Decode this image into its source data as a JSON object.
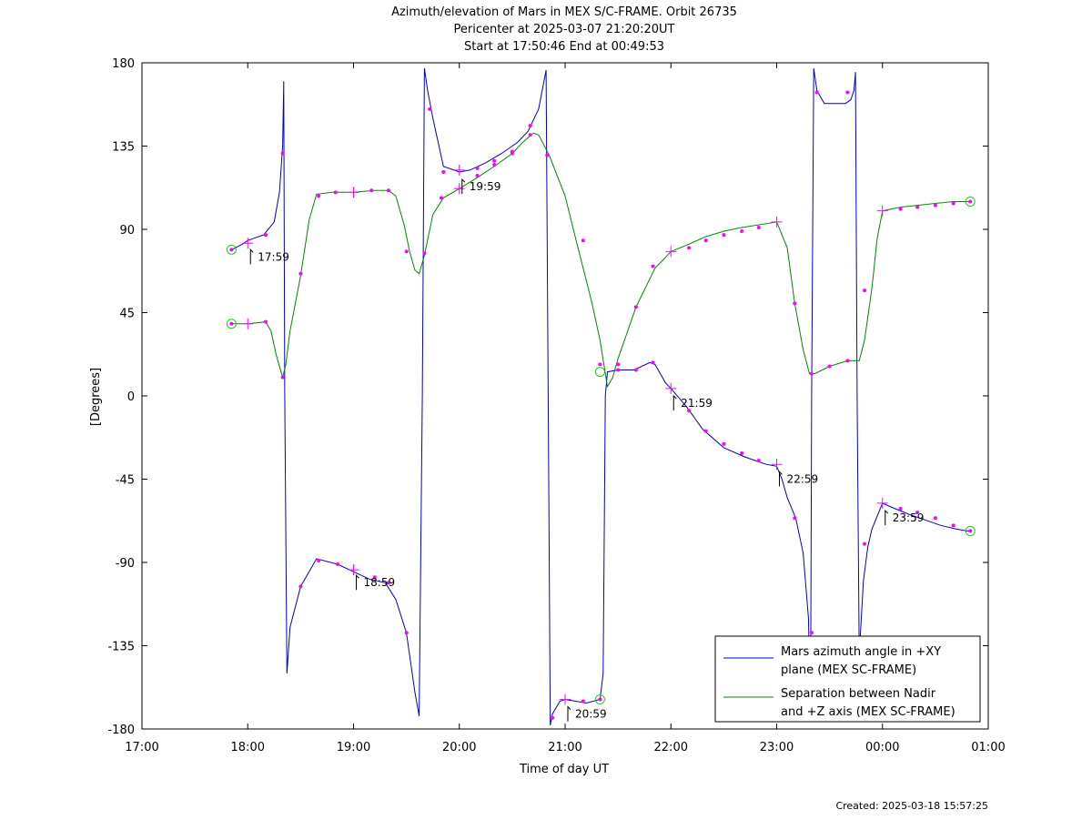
{
  "chart_data": {
    "type": "line",
    "title_lines": [
      "Azimuth/elevation of Mars in MEX S/C-FRAME.  Orbit 26735",
      "Pericenter at 2025-03-07 21:20:20UT",
      "Start at 17:50:46 End at 00:49:53"
    ],
    "xlabel": "Time of day UT",
    "ylabel": "[Degrees]",
    "x_unit": "hours",
    "xlim": [
      17.0,
      25.0
    ],
    "ylim": [
      -180,
      180
    ],
    "x_ticks": [
      {
        "value": 17,
        "label": "17:00"
      },
      {
        "value": 18,
        "label": "18:00"
      },
      {
        "value": 19,
        "label": "19:00"
      },
      {
        "value": 20,
        "label": "20:00"
      },
      {
        "value": 21,
        "label": "21:00"
      },
      {
        "value": 22,
        "label": "22:00"
      },
      {
        "value": 23,
        "label": "23:00"
      },
      {
        "value": 24,
        "label": "00:00"
      },
      {
        "value": 25,
        "label": "01:00"
      }
    ],
    "y_ticks": [
      {
        "value": 180,
        "label": "180"
      },
      {
        "value": 135,
        "label": "135"
      },
      {
        "value": 90,
        "label": "90"
      },
      {
        "value": 45,
        "label": "45"
      },
      {
        "value": 0,
        "label": "0"
      },
      {
        "value": -45,
        "label": "-45"
      },
      {
        "value": -90,
        "label": "-90"
      },
      {
        "value": -135,
        "label": "-135"
      },
      {
        "value": -180,
        "label": "-180"
      }
    ],
    "grid": false,
    "legend_position": "bottom-right",
    "series": [
      {
        "name": "Mars azimuth angle in +XY plane (MEX SC-FRAME)",
        "legend_lines": [
          "Mars azimuth angle in +XY",
          "plane (MEX SC-FRAME)"
        ],
        "color": "#0000cc",
        "points": [
          [
            17.846,
            79
          ],
          [
            17.95,
            82
          ],
          [
            18.0,
            84
          ],
          [
            18.15,
            87
          ],
          [
            18.25,
            94
          ],
          [
            18.3,
            110
          ],
          [
            18.33,
            135
          ],
          [
            18.34,
            170
          ],
          [
            18.35,
            0
          ],
          [
            18.37,
            -150
          ],
          [
            18.4,
            -125
          ],
          [
            18.5,
            -103
          ],
          [
            18.6,
            -93
          ],
          [
            18.65,
            -88
          ],
          [
            18.85,
            -91
          ],
          [
            19.0,
            -95
          ],
          [
            19.15,
            -99
          ],
          [
            19.3,
            -101
          ],
          [
            19.4,
            -110
          ],
          [
            19.5,
            -128
          ],
          [
            19.58,
            -160
          ],
          [
            19.62,
            -173
          ],
          [
            19.65,
            0
          ],
          [
            19.67,
            177
          ],
          [
            19.7,
            165
          ],
          [
            19.75,
            150
          ],
          [
            19.85,
            124
          ],
          [
            20.0,
            121
          ],
          [
            20.1,
            122
          ],
          [
            20.25,
            126
          ],
          [
            20.4,
            131
          ],
          [
            20.55,
            137
          ],
          [
            20.65,
            143
          ],
          [
            20.75,
            155
          ],
          [
            20.82,
            176
          ],
          [
            20.84,
            0
          ],
          [
            20.86,
            -178
          ],
          [
            20.88,
            -172
          ],
          [
            20.95,
            -165
          ],
          [
            21.0,
            -164
          ],
          [
            21.1,
            -165
          ],
          [
            21.2,
            -166
          ],
          [
            21.33,
            -164
          ],
          [
            21.36,
            -150
          ],
          [
            21.38,
            0
          ],
          [
            21.4,
            13
          ],
          [
            21.5,
            14
          ],
          [
            21.65,
            14
          ],
          [
            21.8,
            18
          ],
          [
            21.85,
            17
          ],
          [
            21.95,
            7
          ],
          [
            22.0,
            4
          ],
          [
            22.15,
            -6
          ],
          [
            22.3,
            -18
          ],
          [
            22.5,
            -28
          ],
          [
            22.7,
            -33
          ],
          [
            22.9,
            -37
          ],
          [
            23.0,
            -38
          ],
          [
            23.05,
            -45
          ],
          [
            23.1,
            -55
          ],
          [
            23.18,
            -66
          ],
          [
            23.25,
            -85
          ],
          [
            23.3,
            -120
          ],
          [
            23.32,
            -170
          ],
          [
            23.33,
            0
          ],
          [
            23.35,
            177
          ],
          [
            23.38,
            165
          ],
          [
            23.45,
            158
          ],
          [
            23.55,
            158
          ],
          [
            23.65,
            158
          ],
          [
            23.7,
            160
          ],
          [
            23.73,
            165
          ],
          [
            23.745,
            175
          ],
          [
            23.76,
            0
          ],
          [
            23.78,
            -140
          ],
          [
            23.82,
            -100
          ],
          [
            23.86,
            -82
          ],
          [
            23.9,
            -72
          ],
          [
            24.0,
            -58
          ],
          [
            24.08,
            -60
          ],
          [
            24.25,
            -64
          ],
          [
            24.4,
            -67
          ],
          [
            24.55,
            -70
          ],
          [
            24.7,
            -72
          ],
          [
            24.8,
            -73
          ],
          [
            24.83,
            -73
          ]
        ],
        "markers": [
          [
            17.846,
            79
          ],
          [
            18.17,
            87
          ],
          [
            18.33,
            131
          ],
          [
            18.5,
            -103
          ],
          [
            18.67,
            -89
          ],
          [
            18.85,
            -91
          ],
          [
            19.2,
            -98
          ],
          [
            19.33,
            -101
          ],
          [
            19.5,
            -128
          ],
          [
            19.72,
            155
          ],
          [
            19.85,
            121
          ],
          [
            20.17,
            123
          ],
          [
            20.33,
            127
          ],
          [
            20.5,
            132
          ],
          [
            20.67,
            146
          ],
          [
            20.88,
            -174
          ],
          [
            21.17,
            -165
          ],
          [
            21.33,
            -164
          ],
          [
            21.5,
            14
          ],
          [
            21.67,
            14
          ],
          [
            21.83,
            18
          ],
          [
            22.17,
            -8
          ],
          [
            22.33,
            -19
          ],
          [
            22.5,
            -26
          ],
          [
            22.67,
            -31
          ],
          [
            22.83,
            -35
          ],
          [
            23.17,
            -66
          ],
          [
            23.33,
            -128
          ],
          [
            23.38,
            164
          ],
          [
            23.67,
            164
          ],
          [
            23.83,
            -80
          ],
          [
            24.17,
            -61
          ],
          [
            24.33,
            -63
          ],
          [
            24.5,
            -66
          ],
          [
            24.67,
            -70
          ],
          [
            24.83,
            -73
          ]
        ],
        "hour_crosses": [
          [
            18.0,
            82.5
          ],
          [
            19.0,
            -94
          ],
          [
            20.0,
            122
          ],
          [
            21.0,
            -164
          ],
          [
            22.0,
            4
          ],
          [
            23.0,
            -37
          ],
          [
            24.0,
            -58
          ]
        ]
      },
      {
        "name": "Separation between Nadir and +Z axis (MEX SC-FRAME)",
        "legend_lines": [
          "Separation between Nadir",
          "and +Z axis (MEX SC-FRAME)"
        ],
        "color": "#008800",
        "points": [
          [
            17.846,
            39
          ],
          [
            18.0,
            39
          ],
          [
            18.17,
            40
          ],
          [
            18.22,
            35
          ],
          [
            18.27,
            22
          ],
          [
            18.33,
            10
          ],
          [
            18.36,
            17
          ],
          [
            18.4,
            35
          ],
          [
            18.5,
            65
          ],
          [
            18.58,
            95
          ],
          [
            18.65,
            109
          ],
          [
            18.8,
            110
          ],
          [
            19.0,
            110
          ],
          [
            19.2,
            111
          ],
          [
            19.33,
            111
          ],
          [
            19.4,
            108
          ],
          [
            19.48,
            92
          ],
          [
            19.53,
            78
          ],
          [
            19.58,
            68
          ],
          [
            19.62,
            66
          ],
          [
            19.67,
            76
          ],
          [
            19.75,
            98
          ],
          [
            19.85,
            107
          ],
          [
            20.0,
            112
          ],
          [
            20.17,
            118
          ],
          [
            20.33,
            124
          ],
          [
            20.5,
            131
          ],
          [
            20.6,
            137
          ],
          [
            20.7,
            142
          ],
          [
            20.75,
            141
          ],
          [
            20.85,
            130
          ],
          [
            21.0,
            108
          ],
          [
            21.1,
            85
          ],
          [
            21.25,
            51
          ],
          [
            21.33,
            30
          ],
          [
            21.4,
            5
          ],
          [
            21.45,
            10
          ],
          [
            21.5,
            20
          ],
          [
            21.67,
            48
          ],
          [
            21.85,
            69
          ],
          [
            22.0,
            78
          ],
          [
            22.17,
            82
          ],
          [
            22.33,
            86
          ],
          [
            22.5,
            89
          ],
          [
            22.67,
            91
          ],
          [
            23.0,
            94
          ],
          [
            23.1,
            80
          ],
          [
            23.17,
            50
          ],
          [
            23.25,
            25
          ],
          [
            23.31,
            12
          ],
          [
            23.36,
            12
          ],
          [
            23.5,
            16
          ],
          [
            23.67,
            19
          ],
          [
            23.78,
            19
          ],
          [
            23.83,
            30
          ],
          [
            23.9,
            58
          ],
          [
            23.95,
            85
          ],
          [
            24.0,
            100
          ],
          [
            24.17,
            102
          ],
          [
            24.33,
            103
          ],
          [
            24.5,
            104
          ],
          [
            24.67,
            105
          ],
          [
            24.83,
            105
          ]
        ],
        "markers": [
          [
            17.846,
            39
          ],
          [
            18.17,
            40
          ],
          [
            18.33,
            10
          ],
          [
            18.5,
            66
          ],
          [
            18.67,
            108
          ],
          [
            18.83,
            110
          ],
          [
            19.17,
            111
          ],
          [
            19.33,
            111
          ],
          [
            19.5,
            78
          ],
          [
            19.67,
            77
          ],
          [
            19.83,
            107
          ],
          [
            20.17,
            119
          ],
          [
            20.33,
            125
          ],
          [
            20.5,
            131
          ],
          [
            20.67,
            141
          ],
          [
            20.83,
            130
          ],
          [
            21.17,
            84
          ],
          [
            21.33,
            17
          ],
          [
            21.5,
            17
          ],
          [
            21.67,
            48
          ],
          [
            21.83,
            70
          ],
          [
            22.17,
            80
          ],
          [
            22.33,
            84
          ],
          [
            22.5,
            87
          ],
          [
            22.67,
            89
          ],
          [
            22.83,
            91
          ],
          [
            23.17,
            50
          ],
          [
            23.33,
            12
          ],
          [
            23.5,
            16
          ],
          [
            23.67,
            19
          ],
          [
            23.83,
            57
          ],
          [
            24.17,
            101
          ],
          [
            24.33,
            102
          ],
          [
            24.5,
            103
          ],
          [
            24.67,
            104
          ],
          [
            24.83,
            105
          ]
        ],
        "hour_crosses": [
          [
            18.0,
            39
          ],
          [
            19.0,
            110
          ],
          [
            20.0,
            112
          ],
          [
            22.0,
            78
          ],
          [
            23.0,
            94
          ],
          [
            24.0,
            100
          ]
        ]
      }
    ],
    "start_end_circles": [
      [
        17.846,
        79
      ],
      [
        17.846,
        39
      ],
      [
        21.33,
        -164
      ],
      [
        21.33,
        13
      ],
      [
        24.83,
        105
      ],
      [
        24.83,
        -73
      ]
    ],
    "time_annotations": [
      {
        "x": 18.0,
        "y": 79,
        "label": "17:59"
      },
      {
        "x": 19.0,
        "y": -97,
        "label": "18:59"
      },
      {
        "x": 20.0,
        "y": 117,
        "label": "19:59"
      },
      {
        "x": 21.0,
        "y": -168,
        "label": "20:59"
      },
      {
        "x": 22.0,
        "y": 0,
        "label": "21:59"
      },
      {
        "x": 23.0,
        "y": -41,
        "label": "22:59"
      },
      {
        "x": 24.0,
        "y": -62,
        "label": "23:59"
      }
    ]
  },
  "footer": {
    "created": "Created: 2025-03-18 15:57:25"
  }
}
